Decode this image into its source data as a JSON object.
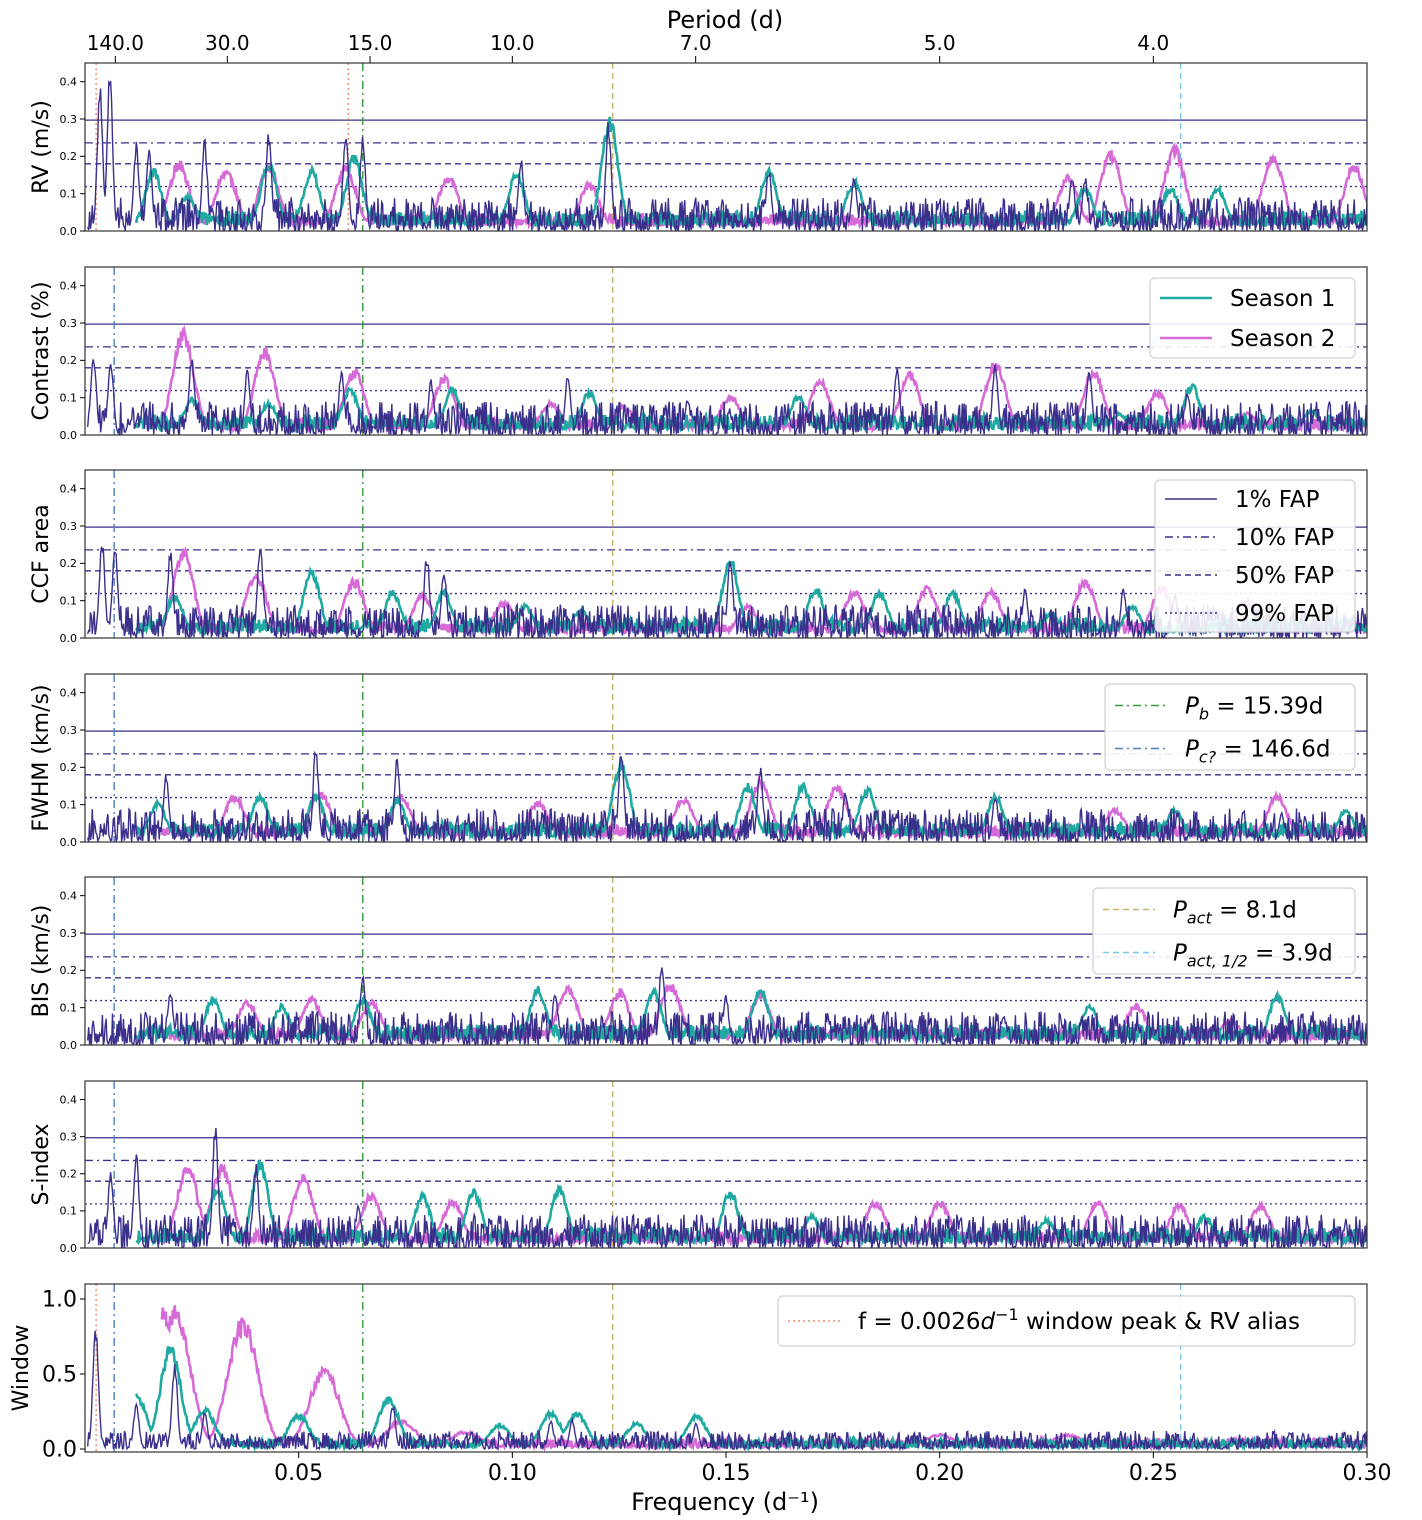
{
  "figure": {
    "top_axis_title": "Period (d)",
    "bottom_axis_title": "Frequency (d⁻¹)"
  },
  "colors": {
    "season_combined": "#3b2f8c",
    "season1": "#1fa9a0",
    "season2": "#d66ad6",
    "fap": "#3b2f8c",
    "pb": "#3a9a3a",
    "pc": "#4a7fc0",
    "pact": "#c8b46a",
    "pact_half": "#7cc8ec",
    "window_alias": "#f08a6e"
  },
  "chart_data": {
    "type": "line",
    "x_range": [
      0.0,
      0.3
    ],
    "x_ticks": [
      0.05,
      0.1,
      0.15,
      0.2,
      0.25,
      0.3
    ],
    "x_tick_labels": [
      "0.05",
      "0.10",
      "0.15",
      "0.20",
      "0.25",
      "0.30"
    ],
    "period_ticks": [
      {
        "freq": 0.0071,
        "label": "140.0"
      },
      {
        "freq": 0.0333,
        "label": "30.0"
      },
      {
        "freq": 0.0667,
        "label": "15.0"
      },
      {
        "freq": 0.1,
        "label": "10.0"
      },
      {
        "freq": 0.1429,
        "label": "7.0"
      },
      {
        "freq": 0.2,
        "label": "5.0"
      },
      {
        "freq": 0.25,
        "label": "4.0"
      }
    ],
    "markers": [
      {
        "key": "pb",
        "freq": 0.065,
        "panels": [
          0,
          1,
          2,
          3,
          4,
          5,
          6
        ]
      },
      {
        "key": "pc",
        "freq": 0.00682,
        "panels": [
          1,
          2,
          3,
          4,
          5,
          6
        ]
      },
      {
        "key": "pact",
        "freq": 0.1235,
        "panels": [
          0,
          1,
          2,
          3,
          4,
          5,
          6
        ]
      },
      {
        "key": "pact_half",
        "freq": 0.2564,
        "panels": [
          0,
          6
        ]
      },
      {
        "key": "window_alias",
        "freq": 0.0026,
        "panels": [
          0,
          6
        ]
      },
      {
        "key": "window_alias",
        "freq": 0.0616,
        "panels": [
          0
        ]
      }
    ],
    "fap_levels": [
      0.297,
      0.236,
      0.18,
      0.119
    ],
    "panels": [
      {
        "ylabel": "RV (m/s)",
        "ylim": [
          0,
          0.45
        ],
        "yticks": [
          "0.0",
          "0.1",
          "0.2",
          "0.3",
          "0.4"
        ],
        "peaks": [
          [
            0.0035,
            0.4
          ],
          [
            0.0058,
            0.44
          ],
          [
            0.012,
            0.24
          ],
          [
            0.015,
            0.23
          ],
          [
            0.028,
            0.25
          ],
          [
            0.043,
            0.27
          ],
          [
            0.061,
            0.27
          ],
          [
            0.065,
            0.26
          ],
          [
            0.102,
            0.2
          ],
          [
            0.1225,
            0.3
          ],
          [
            0.16,
            0.17
          ],
          [
            0.18,
            0.15
          ],
          [
            0.231,
            0.15
          ],
          [
            0.234,
            0.15
          ]
        ],
        "peaks1": [
          [
            0.016,
            0.17
          ],
          [
            0.024,
            0.1
          ],
          [
            0.043,
            0.19
          ],
          [
            0.053,
            0.17
          ],
          [
            0.063,
            0.21
          ],
          [
            0.101,
            0.16
          ],
          [
            0.1228,
            0.31
          ],
          [
            0.16,
            0.17
          ],
          [
            0.18,
            0.14
          ],
          [
            0.234,
            0.12
          ],
          [
            0.254,
            0.12
          ],
          [
            0.265,
            0.12
          ]
        ],
        "peaks2": [
          [
            0.022,
            0.19
          ],
          [
            0.033,
            0.17
          ],
          [
            0.043,
            0.18
          ],
          [
            0.061,
            0.18
          ],
          [
            0.085,
            0.15
          ],
          [
            0.118,
            0.13
          ],
          [
            0.23,
            0.15
          ],
          [
            0.24,
            0.22
          ],
          [
            0.255,
            0.23
          ],
          [
            0.278,
            0.21
          ],
          [
            0.297,
            0.18
          ]
        ]
      },
      {
        "ylabel": "Contrast (%)",
        "ylim": [
          0,
          0.45
        ],
        "yticks": [
          "0.0",
          "0.1",
          "0.2",
          "0.3",
          "0.4"
        ],
        "peaks": [
          [
            0.002,
            0.22
          ],
          [
            0.006,
            0.21
          ],
          [
            0.025,
            0.22
          ],
          [
            0.038,
            0.18
          ],
          [
            0.06,
            0.18
          ],
          [
            0.081,
            0.15
          ],
          [
            0.113,
            0.17
          ],
          [
            0.141,
            0.1
          ],
          [
            0.19,
            0.19
          ],
          [
            0.213,
            0.2
          ],
          [
            0.235,
            0.18
          ],
          [
            0.258,
            0.12
          ],
          [
            0.277,
            0.04
          ]
        ],
        "peaks1": [
          [
            0.025,
            0.1
          ],
          [
            0.043,
            0.09
          ],
          [
            0.062,
            0.13
          ],
          [
            0.086,
            0.13
          ],
          [
            0.118,
            0.12
          ],
          [
            0.167,
            0.11
          ],
          [
            0.242,
            0.06
          ],
          [
            0.259,
            0.14
          ],
          [
            0.287,
            0.07
          ]
        ],
        "peaks2": [
          [
            0.023,
            0.29
          ],
          [
            0.042,
            0.24
          ],
          [
            0.063,
            0.18
          ],
          [
            0.084,
            0.16
          ],
          [
            0.109,
            0.09
          ],
          [
            0.126,
            0.08
          ],
          [
            0.151,
            0.11
          ],
          [
            0.172,
            0.15
          ],
          [
            0.193,
            0.17
          ],
          [
            0.213,
            0.2
          ],
          [
            0.236,
            0.18
          ],
          [
            0.251,
            0.12
          ],
          [
            0.272,
            0.06
          ]
        ]
      },
      {
        "ylabel": "CCF area",
        "ylim": [
          0,
          0.45
        ],
        "yticks": [
          "0.0",
          "0.1",
          "0.2",
          "0.3",
          "0.4"
        ],
        "peaks": [
          [
            0.004,
            0.27
          ],
          [
            0.007,
            0.25
          ],
          [
            0.02,
            0.25
          ],
          [
            0.041,
            0.27
          ],
          [
            0.08,
            0.23
          ],
          [
            0.084,
            0.19
          ],
          [
            0.151,
            0.22
          ],
          [
            0.22,
            0.14
          ],
          [
            0.243,
            0.14
          ],
          [
            0.255,
            0.12
          ]
        ],
        "peaks1": [
          [
            0.021,
            0.12
          ],
          [
            0.053,
            0.19
          ],
          [
            0.072,
            0.13
          ],
          [
            0.084,
            0.13
          ],
          [
            0.103,
            0.09
          ],
          [
            0.116,
            0.08
          ],
          [
            0.151,
            0.22
          ],
          [
            0.171,
            0.14
          ],
          [
            0.186,
            0.13
          ],
          [
            0.203,
            0.13
          ],
          [
            0.226,
            0.07
          ],
          [
            0.245,
            0.09
          ]
        ],
        "peaks2": [
          [
            0.023,
            0.24
          ],
          [
            0.04,
            0.18
          ],
          [
            0.063,
            0.16
          ],
          [
            0.079,
            0.12
          ],
          [
            0.098,
            0.1
          ],
          [
            0.155,
            0.09
          ],
          [
            0.18,
            0.13
          ],
          [
            0.197,
            0.14
          ],
          [
            0.212,
            0.13
          ],
          [
            0.234,
            0.16
          ],
          [
            0.252,
            0.14
          ],
          [
            0.272,
            0.1
          ]
        ]
      },
      {
        "ylabel": "FWHM (km/s)",
        "ylim": [
          0,
          0.45
        ],
        "yticks": [
          "0.0",
          "0.1",
          "0.2",
          "0.3",
          "0.4"
        ],
        "peaks": [
          [
            0.019,
            0.19
          ],
          [
            0.054,
            0.26
          ],
          [
            0.073,
            0.23
          ],
          [
            0.1255,
            0.25
          ],
          [
            0.158,
            0.21
          ],
          [
            0.178,
            0.14
          ],
          [
            0.213,
            0.13
          ],
          [
            0.28,
            0.08
          ]
        ],
        "peaks1": [
          [
            0.017,
            0.11
          ],
          [
            0.041,
            0.13
          ],
          [
            0.054,
            0.13
          ],
          [
            0.073,
            0.12
          ],
          [
            0.1255,
            0.23
          ],
          [
            0.155,
            0.16
          ],
          [
            0.168,
            0.16
          ],
          [
            0.183,
            0.15
          ],
          [
            0.213,
            0.13
          ],
          [
            0.255,
            0.09
          ],
          [
            0.295,
            0.09
          ]
        ],
        "peaks2": [
          [
            0.035,
            0.13
          ],
          [
            0.055,
            0.14
          ],
          [
            0.074,
            0.13
          ],
          [
            0.106,
            0.11
          ],
          [
            0.14,
            0.12
          ],
          [
            0.158,
            0.17
          ],
          [
            0.176,
            0.16
          ],
          [
            0.241,
            0.09
          ],
          [
            0.279,
            0.13
          ]
        ]
      },
      {
        "ylabel": "BIS (km/s)",
        "ylim": [
          0,
          0.45
        ],
        "yticks": [
          "0.0",
          "0.1",
          "0.2",
          "0.3",
          "0.4"
        ],
        "peaks": [
          [
            0.02,
            0.15
          ],
          [
            0.065,
            0.19
          ],
          [
            0.11,
            0.14
          ],
          [
            0.135,
            0.23
          ],
          [
            0.15,
            0.14
          ],
          [
            0.215,
            0.08
          ]
        ],
        "peaks1": [
          [
            0.03,
            0.13
          ],
          [
            0.046,
            0.11
          ],
          [
            0.065,
            0.13
          ],
          [
            0.106,
            0.16
          ],
          [
            0.133,
            0.15
          ],
          [
            0.158,
            0.16
          ],
          [
            0.235,
            0.11
          ],
          [
            0.279,
            0.14
          ]
        ],
        "peaks2": [
          [
            0.038,
            0.12
          ],
          [
            0.053,
            0.13
          ],
          [
            0.067,
            0.12
          ],
          [
            0.113,
            0.16
          ],
          [
            0.125,
            0.15
          ],
          [
            0.137,
            0.17
          ],
          [
            0.158,
            0.14
          ],
          [
            0.246,
            0.11
          ],
          [
            0.268,
            0.07
          ]
        ]
      },
      {
        "ylabel": "S-index",
        "ylim": [
          0,
          0.45
        ],
        "yticks": [
          "0.0",
          "0.1",
          "0.2",
          "0.3",
          "0.4"
        ],
        "peaks": [
          [
            0.006,
            0.21
          ],
          [
            0.012,
            0.26
          ],
          [
            0.0305,
            0.34
          ],
          [
            0.04,
            0.23
          ],
          [
            0.064,
            0.12
          ]
        ],
        "peaks1": [
          [
            0.031,
            0.17
          ],
          [
            0.041,
            0.24
          ],
          [
            0.079,
            0.15
          ],
          [
            0.091,
            0.16
          ],
          [
            0.111,
            0.17
          ],
          [
            0.151,
            0.16
          ],
          [
            0.17,
            0.09
          ],
          [
            0.225,
            0.08
          ],
          [
            0.262,
            0.09
          ]
        ],
        "peaks2": [
          [
            0.024,
            0.23
          ],
          [
            0.032,
            0.23
          ],
          [
            0.051,
            0.2
          ],
          [
            0.067,
            0.15
          ],
          [
            0.086,
            0.13
          ],
          [
            0.185,
            0.13
          ],
          [
            0.2,
            0.13
          ],
          [
            0.237,
            0.13
          ],
          [
            0.256,
            0.12
          ],
          [
            0.275,
            0.12
          ]
        ]
      },
      {
        "ylabel": "Window",
        "ylim": [
          -0.02,
          1.1
        ],
        "yticks": [
          "0.0",
          "0.5",
          "1.0"
        ],
        "ytick_vals": [
          0,
          0.5,
          1.0
        ],
        "peaks": [
          [
            0.0025,
            0.85
          ],
          [
            0.012,
            0.3
          ],
          [
            0.021,
            0.6
          ],
          [
            0.028,
            0.25
          ],
          [
            0.072,
            0.3
          ],
          [
            0.109,
            0.2
          ],
          [
            0.114,
            0.2
          ],
          [
            0.143,
            0.18
          ]
        ],
        "peaks1": [
          [
            0.012,
            0.37
          ],
          [
            0.02,
            0.7
          ],
          [
            0.028,
            0.28
          ],
          [
            0.05,
            0.24
          ],
          [
            0.071,
            0.35
          ],
          [
            0.097,
            0.17
          ],
          [
            0.109,
            0.25
          ],
          [
            0.115,
            0.25
          ],
          [
            0.129,
            0.18
          ],
          [
            0.143,
            0.23
          ]
        ],
        "peaks2": [
          [
            0.018,
            1.0
          ],
          [
            0.021,
            0.98
          ],
          [
            0.037,
            0.89
          ],
          [
            0.056,
            0.55
          ],
          [
            0.074,
            0.2
          ],
          [
            0.089,
            0.12
          ],
          [
            0.2,
            0.1
          ],
          [
            0.23,
            0.1
          ],
          [
            0.27,
            0.06
          ]
        ]
      }
    ],
    "legends": [
      {
        "panel": 1,
        "items": [
          {
            "label": "Season 1",
            "key": "season1",
            "style": "solid"
          },
          {
            "label": "Season 2",
            "key": "season2",
            "style": "solid"
          }
        ]
      },
      {
        "panel": 2,
        "items": [
          {
            "label": "1% FAP",
            "key": "fap",
            "style": "solid"
          },
          {
            "label": "10% FAP",
            "key": "fap",
            "style": "dashdot"
          },
          {
            "label": "50% FAP",
            "key": "fap",
            "style": "dashed"
          },
          {
            "label": "99% FAP",
            "key": "fap",
            "style": "dotted"
          }
        ]
      },
      {
        "panel": 3,
        "items": [
          {
            "label": "P_b = 15.39d",
            "sym": "P",
            "sub": "b",
            "rest": " = 15.39d",
            "key": "pb",
            "style": "dashdot"
          },
          {
            "label": "P_c? = 146.6d",
            "sym": "P",
            "sub": "c?",
            "rest": " = 146.6d",
            "key": "pc",
            "style": "dashdot"
          }
        ]
      },
      {
        "panel": 4,
        "items": [
          {
            "label": "P_act = 8.1d",
            "sym": "P",
            "sub": "act",
            "rest": " = 8.1d",
            "key": "pact",
            "style": "dashed"
          },
          {
            "label": "P_act,1/2 = 3.9d",
            "sym": "P",
            "sub": "act, 1/2",
            "rest": " = 3.9d",
            "key": "pact_half",
            "style": "dashed"
          }
        ]
      },
      {
        "panel": 6,
        "items": [
          {
            "label": "f = 0.0026d⁻¹ window peak & RV alias",
            "sym": "",
            "pre": "f = 0.0026",
            "mathvar": "d",
            "sup": "−1",
            "rest": " window peak & RV alias",
            "key": "window_alias",
            "style": "dotted"
          }
        ]
      }
    ]
  }
}
